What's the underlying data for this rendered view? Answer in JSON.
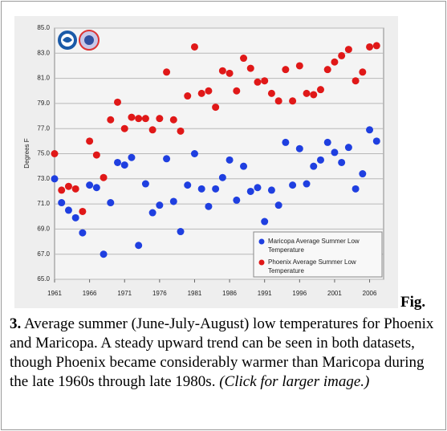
{
  "chart_data": {
    "type": "scatter",
    "y_label": "Degrees F",
    "x": [
      1961,
      1962,
      1963,
      1964,
      1965,
      1966,
      1967,
      1968,
      1969,
      1970,
      1971,
      1972,
      1973,
      1974,
      1975,
      1976,
      1977,
      1978,
      1979,
      1980,
      1981,
      1982,
      1983,
      1984,
      1985,
      1986,
      1987,
      1988,
      1989,
      1990,
      1991,
      1992,
      1993,
      1994,
      1995,
      1996,
      1997,
      1998,
      1999,
      2000,
      2001,
      2002,
      2003,
      2004,
      2005,
      2006,
      2007
    ],
    "series": [
      {
        "name": "Maricopa Average Summer Low Temperature",
        "color": "#1f3fe0",
        "values": [
          73.0,
          71.1,
          70.5,
          69.9,
          68.7,
          72.5,
          72.3,
          67.0,
          71.1,
          74.3,
          74.1,
          74.7,
          67.7,
          72.6,
          70.3,
          70.9,
          74.6,
          71.2,
          68.8,
          72.5,
          75.0,
          72.2,
          70.8,
          72.2,
          73.1,
          74.5,
          71.3,
          74.0,
          72.0,
          72.3,
          69.6,
          72.1,
          70.9,
          75.9,
          72.5,
          75.4,
          72.6,
          74.0,
          74.5,
          75.9,
          75.1,
          74.3,
          75.5,
          72.2,
          73.4,
          76.9,
          76.0
        ]
      },
      {
        "name": "Phoenix Average Summer Low Temperature",
        "color": "#e01818",
        "values": [
          75.0,
          72.1,
          72.4,
          72.2,
          70.4,
          76.0,
          74.9,
          73.1,
          77.7,
          79.1,
          77.0,
          77.9,
          77.8,
          77.8,
          76.9,
          77.8,
          81.5,
          77.7,
          76.8,
          79.6,
          83.5,
          79.8,
          80.0,
          78.7,
          81.6,
          81.4,
          80.0,
          82.6,
          81.8,
          80.7,
          80.8,
          79.8,
          79.2,
          81.7,
          79.2,
          82.0,
          79.8,
          79.7,
          80.1,
          81.7,
          82.3,
          82.8,
          83.3,
          80.8,
          81.5,
          83.5,
          83.6
        ]
      }
    ],
    "xlim": [
      1961,
      2008
    ],
    "xticks": [
      1961,
      1966,
      1971,
      1976,
      1981,
      1986,
      1991,
      1996,
      2001,
      2006
    ],
    "ylim": [
      65,
      85
    ],
    "yticks": [
      {
        "value": 65,
        "label": "65.0"
      },
      {
        "value": 67,
        "label": "67.0"
      },
      {
        "value": 69,
        "label": "69.0"
      },
      {
        "value": 71,
        "label": "71.0"
      },
      {
        "value": 73,
        "label": "73.0"
      },
      {
        "value": 75,
        "label": "75.0"
      },
      {
        "value": 77,
        "label": "77.0"
      },
      {
        "value": 79,
        "label": "79.0"
      },
      {
        "value": 81,
        "label": "81.0"
      },
      {
        "value": 83,
        "label": "83.0"
      },
      {
        "value": 85,
        "label": "85.0"
      }
    ],
    "grid": true,
    "legend": "lower right"
  },
  "caption": {
    "figure_label": "Fig.",
    "number": "3.",
    "text": "Average summer (June-July-August) low temperatures for Phoenix and Maricopa. A steady upward trend can be seen in both datasets, though Phoenix became considerably warmer than Maricopa during the late 1960s through late 1980s.",
    "link": "(Click for larger image.)"
  }
}
